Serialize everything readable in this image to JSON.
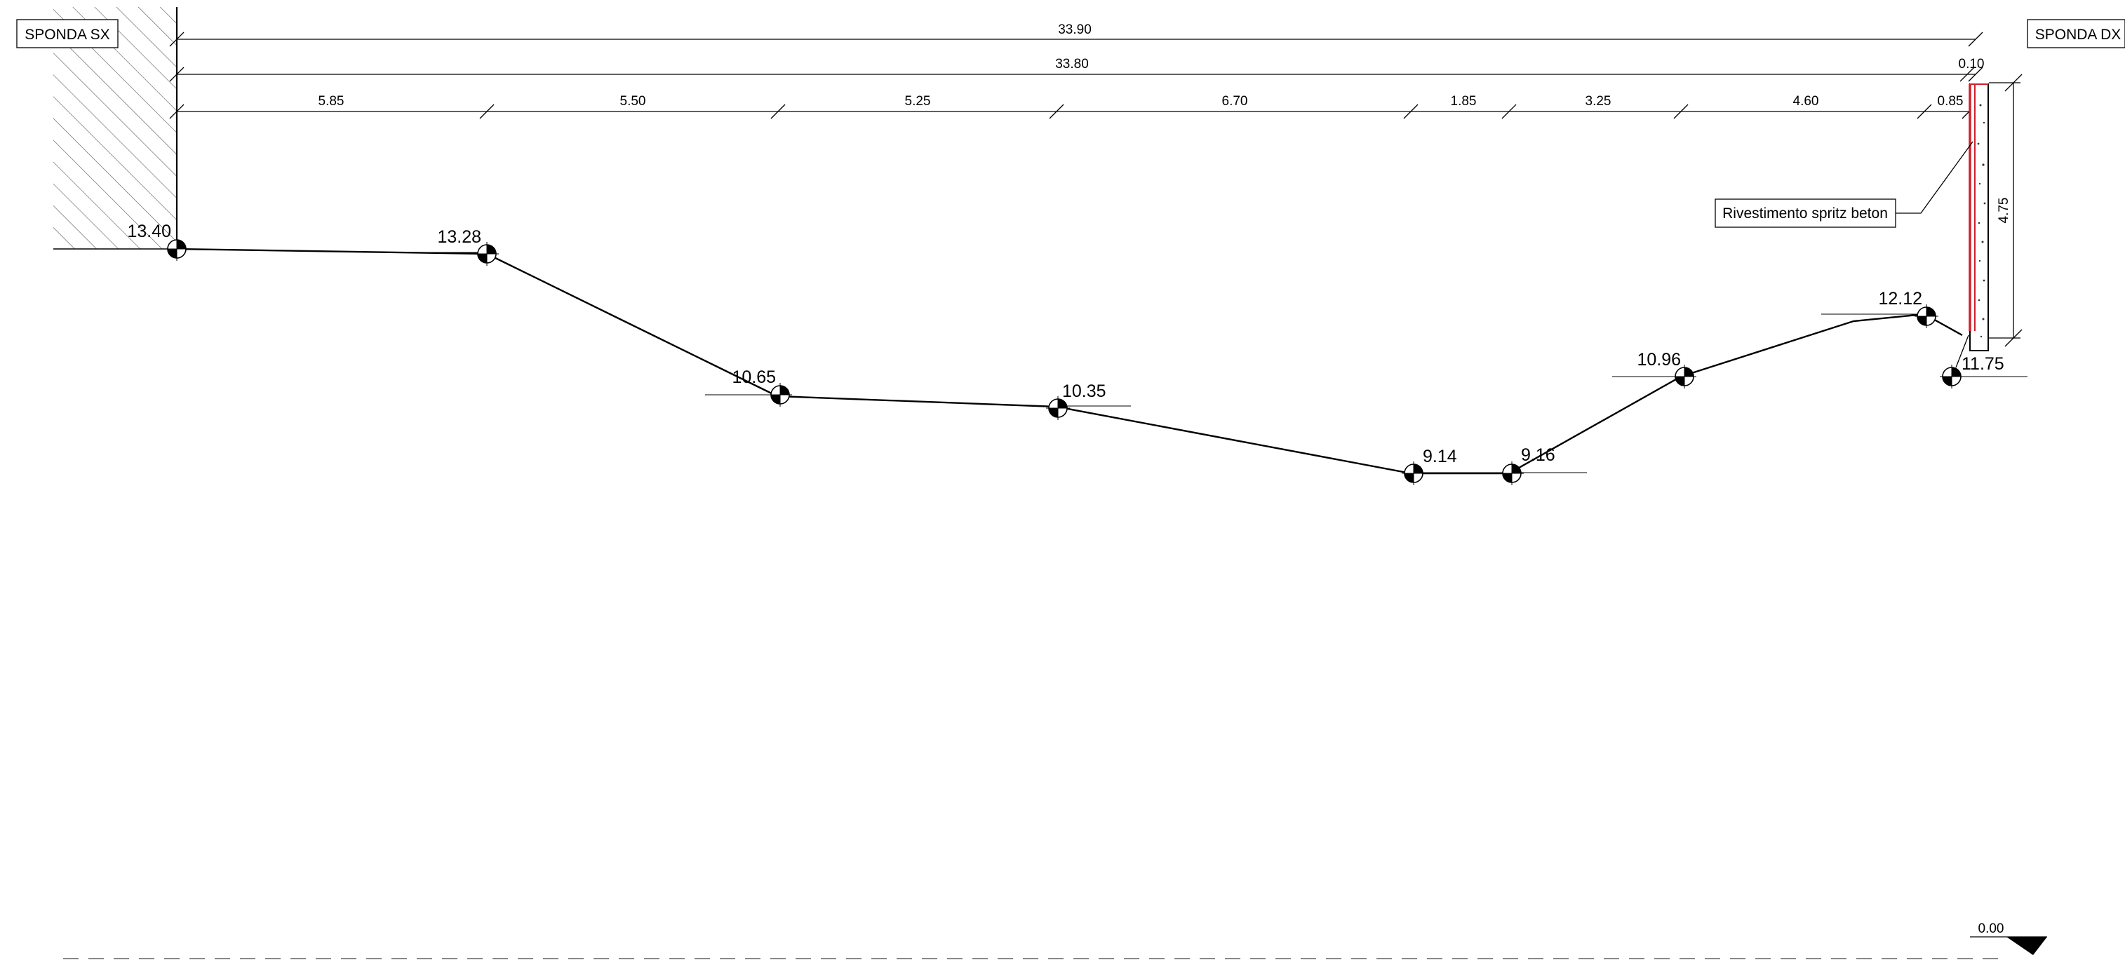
{
  "labels": {
    "left_bank": "SPONDA SX",
    "right_bank": "SPONDA DX",
    "lining_note": "Rivestimento spritz beton",
    "datum_value": "0.00"
  },
  "dimensions": {
    "total_outer": "33.90",
    "total_inner": "33.80",
    "lining_thickness": "0.10",
    "wall_height": "4.75",
    "segments": [
      "5.85",
      "5.50",
      "5.25",
      "6.70",
      "1.85",
      "3.25",
      "4.60",
      "0.85"
    ]
  },
  "elevations": [
    "13.40",
    "13.28",
    "10.65",
    "10.35",
    "9.14",
    "9.16",
    "10.96",
    "12.12",
    "11.75"
  ],
  "colors": {
    "line": "#000000",
    "lining": "#d0202a",
    "grid": "#888888"
  }
}
